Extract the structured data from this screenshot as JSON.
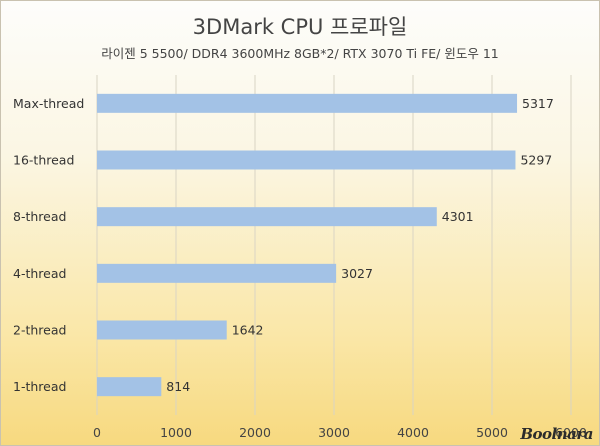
{
  "chart_data": {
    "type": "bar",
    "orientation": "horizontal",
    "title": "3DMark CPU 프로파일",
    "subtitle": "라이젠 5 5500/ DDR4 3600MHz 8GB*2/ RTX 3070 Ti FE/ 윈도우 11",
    "categories": [
      "Max-thread",
      "16-thread",
      "8-thread",
      "4-thread",
      "2-thread",
      "1-thread"
    ],
    "values": [
      5317,
      5297,
      4301,
      3027,
      1642,
      814
    ],
    "xlim": [
      0,
      6000
    ],
    "x_ticks": [
      0,
      1000,
      2000,
      3000,
      4000,
      5000,
      6000
    ],
    "x_tick_labels": [
      "0",
      "1000",
      "2000",
      "3000",
      "4000",
      "5000",
      "6000"
    ],
    "value_labels": [
      "5317",
      "5297",
      "4301",
      "3027",
      "1642",
      "814"
    ],
    "grid": "vertical",
    "legend": "none",
    "colors": {
      "bar": "#a3c2e6",
      "grid": "#d9d4c4",
      "text": "#333333"
    }
  },
  "watermark": "Boolnara"
}
